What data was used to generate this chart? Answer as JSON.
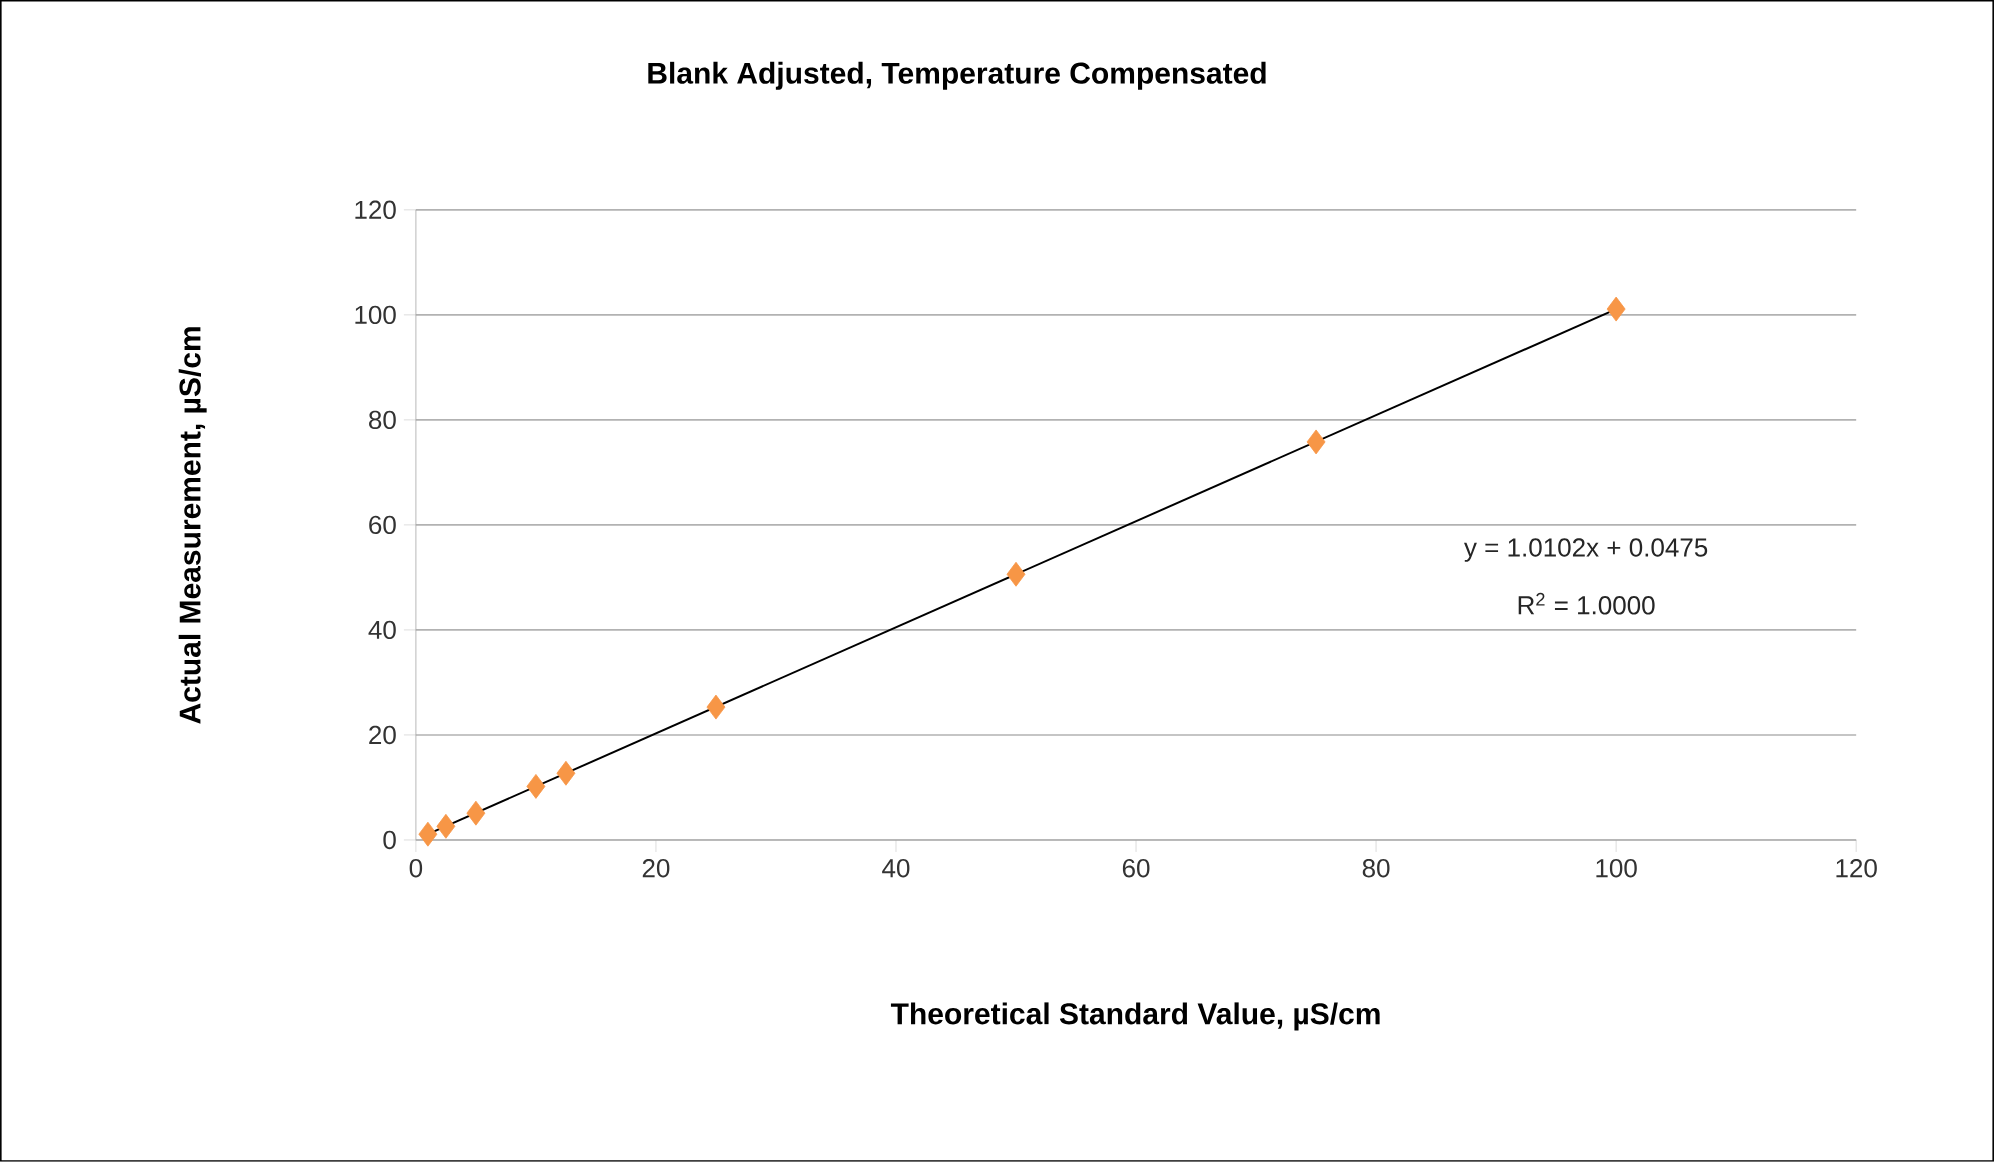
{
  "chart_data": {
    "type": "scatter",
    "title": "Blank Adjusted, Temperature Compensated",
    "xlabel": "Theoretical Standard Value, µS/cm",
    "ylabel": "Actual Measurement, µS/cm",
    "series": [
      {
        "type": "scatter",
        "color": "#f79646",
        "marker": "diamond",
        "x": [
          1,
          2.5,
          5,
          10,
          12.5,
          25,
          50,
          75,
          100
        ],
        "values": [
          1.1,
          2.6,
          5.1,
          10.2,
          12.7,
          25.3,
          50.6,
          75.8,
          101.1
        ]
      },
      {
        "type": "line",
        "color": "#000000",
        "marker": "none",
        "x": [
          1,
          100
        ],
        "values": [
          1.1,
          101.1
        ]
      }
    ],
    "annotations": [
      "y = 1.0102x + 0.0475",
      "R$^{2}$ = 1.0000"
    ],
    "xlim": [
      0,
      120
    ],
    "xticks": [
      0,
      20,
      40,
      60,
      80,
      100,
      120
    ],
    "ylim": [
      0,
      120
    ],
    "yticks": [
      0,
      20,
      40,
      60,
      80,
      100,
      120
    ],
    "grid": "y"
  }
}
